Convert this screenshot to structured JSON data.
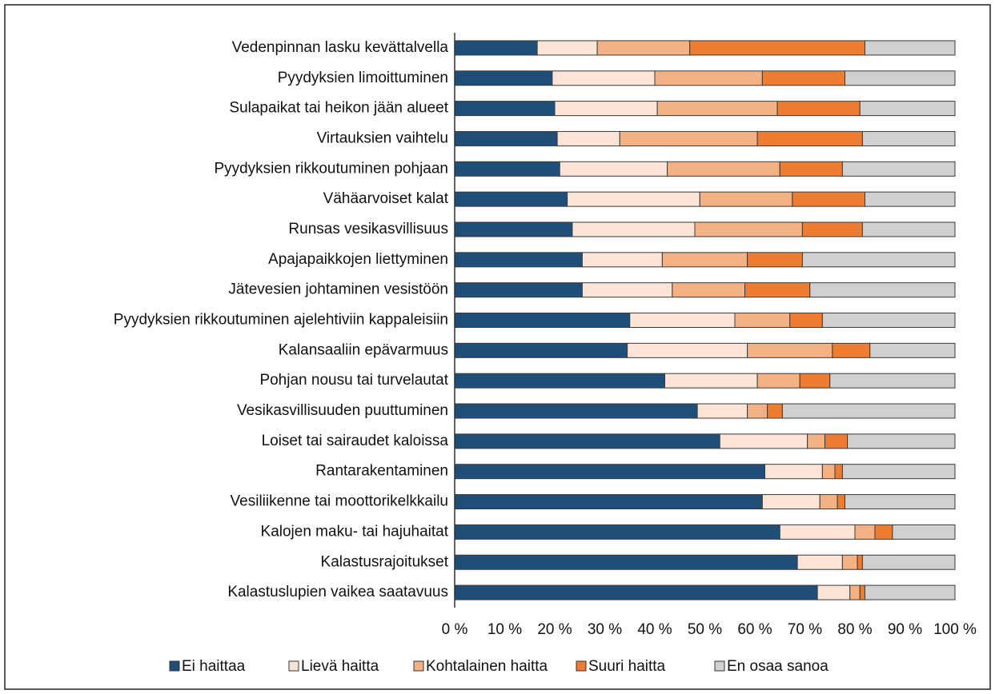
{
  "chart_data": {
    "type": "stacked_barh",
    "categories": [
      "Vedenpinnan lasku kevättalvella",
      "Pyydyksien limoittuminen",
      "Sulapaikat tai heikon jään alueet",
      "Virtauksien vaihtelu",
      "Pyydyksien rikkoutuminen pohjaan",
      "Vähäarvoiset kalat",
      "Runsas vesikasvillisuus",
      "Apajapaikkojen liettyminen",
      "Jätevesien johtaminen vesistöön",
      "Pyydyksien rikkoutuminen ajelehtiviin kappaleisiin",
      "Kalansaaliin epävarmuus",
      "Pohjan nousu tai turvelautat",
      "Vesikasvillisuuden puuttuminen",
      "Loiset tai sairaudet kaloissa",
      "Rantarakentaminen",
      "Vesiliikenne tai moottorikelkkailu",
      "Kalojen maku- tai hajuhaitat",
      "Kalastusrajoitukset",
      "Kalastuslupien vaikea saatavuus"
    ],
    "series": [
      {
        "name": "Ei haittaa",
        "color": "#1f4e79",
        "values": [
          16.5,
          19.5,
          20,
          20.5,
          21,
          22.5,
          23.5,
          25.5,
          25.5,
          35,
          34.5,
          42,
          48.5,
          53,
          62,
          61.5,
          65,
          68.5,
          72.5
        ]
      },
      {
        "name": "Lievä haitta",
        "color": "#fce4d6",
        "values": [
          12,
          20.5,
          20.5,
          12.5,
          21.5,
          26.5,
          24.5,
          16,
          18,
          21,
          24,
          18.5,
          10,
          17.5,
          11.5,
          11.5,
          15,
          9,
          6.5
        ]
      },
      {
        "name": "Kohtalainen haitta",
        "color": "#f4b183",
        "values": [
          18.5,
          21.5,
          24,
          27.5,
          22.5,
          18.5,
          21.5,
          17,
          14.5,
          11,
          17,
          8.5,
          4,
          3.5,
          2.5,
          3.5,
          4,
          3,
          2
        ]
      },
      {
        "name": "Suuri haitta",
        "color": "#ed7d31",
        "values": [
          35,
          16.5,
          16.5,
          21,
          12.5,
          14.5,
          12,
          11,
          13,
          6.5,
          7.5,
          6,
          3,
          4.5,
          1.5,
          1.5,
          3.5,
          1,
          1
        ]
      },
      {
        "name": "En osaa sanoa",
        "color": "#d0d0d0",
        "values": [
          18,
          22,
          19,
          18.5,
          22.5,
          18,
          18.5,
          30.5,
          29,
          26.5,
          17,
          25,
          34.5,
          21.5,
          22.5,
          22,
          12.5,
          18.5,
          18
        ]
      }
    ],
    "xlim": [
      0,
      100
    ],
    "xticks": [
      {
        "value": 0,
        "label": "0 %"
      },
      {
        "value": 10,
        "label": "10 %"
      },
      {
        "value": 20,
        "label": "20 %"
      },
      {
        "value": 30,
        "label": "30 %"
      },
      {
        "value": 40,
        "label": "40 %"
      },
      {
        "value": 50,
        "label": "50 %"
      },
      {
        "value": 60,
        "label": "60 %"
      },
      {
        "value": 70,
        "label": "70 %"
      },
      {
        "value": 80,
        "label": "80 %"
      },
      {
        "value": 90,
        "label": "90 %"
      },
      {
        "value": 100,
        "label": "100 %"
      }
    ],
    "legend": "bottom"
  }
}
